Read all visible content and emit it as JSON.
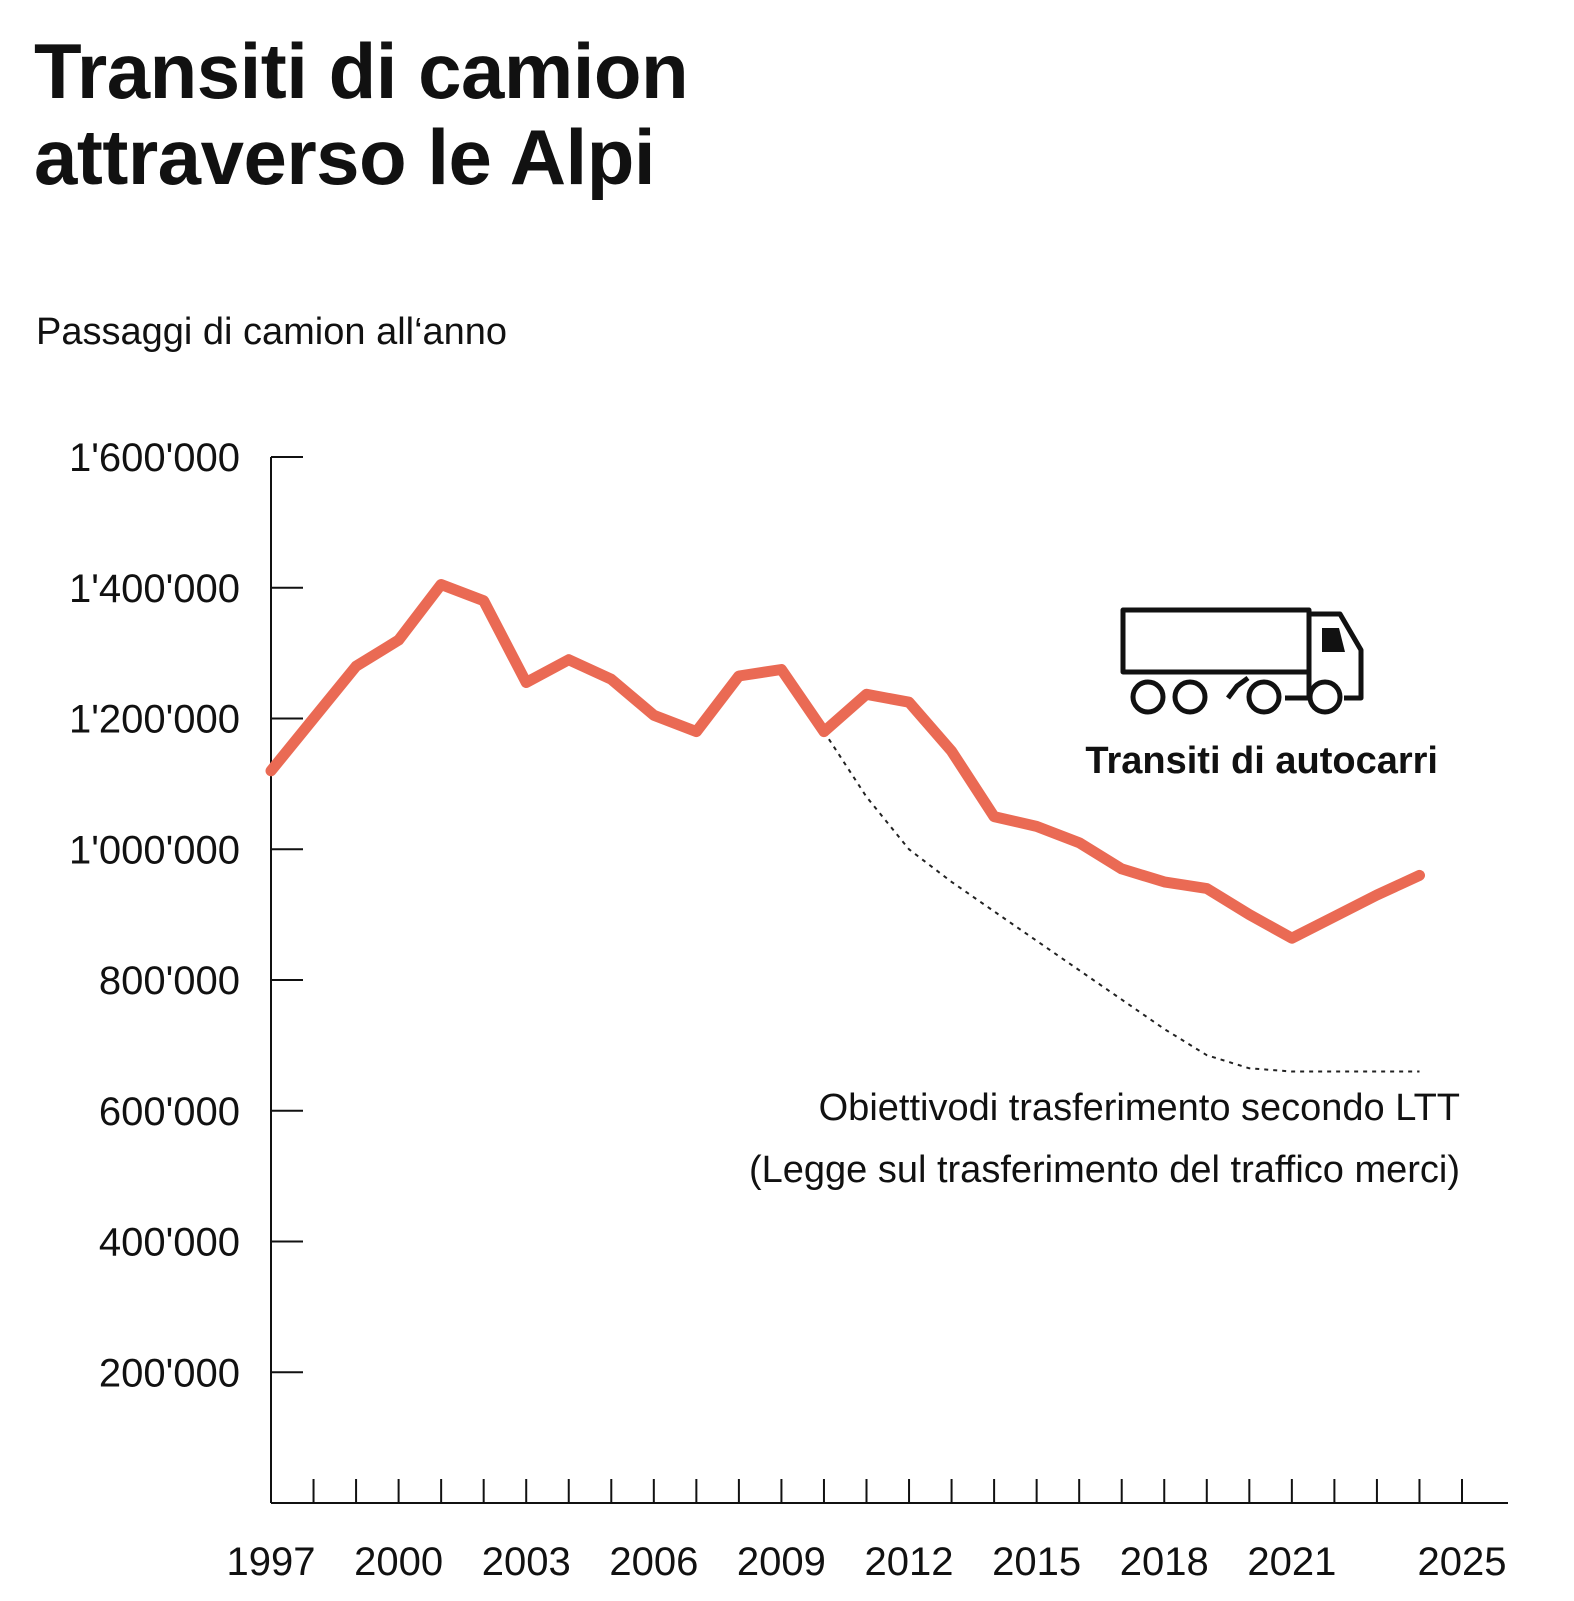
{
  "title_lines": [
    "Transiti di camion",
    "attraverso le Alpi"
  ],
  "y_axis_label": "Passaggi di camion all‘anno",
  "chart_data": {
    "type": "line",
    "title": "Transiti di camion attraverso le Alpi",
    "ylabel": "Passaggi di camion all‘anno",
    "xlim": [
      1997,
      2025
    ],
    "ylim": [
      0,
      1600000
    ],
    "y_ticks": [
      200000,
      400000,
      600000,
      800000,
      1000000,
      1200000,
      1400000,
      1600000
    ],
    "y_tick_labels": [
      "200'000",
      "400'000",
      "600'000",
      "800'000",
      "1'000'000",
      "1'200'000",
      "1'400'000",
      "1'600'000"
    ],
    "x_ticks": [
      1997,
      2000,
      2003,
      2006,
      2009,
      2012,
      2015,
      2018,
      2021,
      2025
    ],
    "x_tick_labels": [
      "1997",
      "2000",
      "2003",
      "2006",
      "2009",
      "2012",
      "2015",
      "2018",
      "2021",
      "2025"
    ],
    "x_minor_ticks": [
      1998,
      1999,
      2000,
      2001,
      2002,
      2003,
      2004,
      2005,
      2006,
      2007,
      2008,
      2009,
      2010,
      2011,
      2012,
      2013,
      2014,
      2015,
      2016,
      2017,
      2018,
      2019,
      2020,
      2021,
      2022,
      2023,
      2024,
      2025
    ],
    "grid": false,
    "series": [
      {
        "name": "Transiti di autocarri",
        "color": "#ea6a54",
        "style": "solid",
        "x": [
          1997,
          1998,
          1999,
          2000,
          2001,
          2002,
          2003,
          2004,
          2005,
          2006,
          2007,
          2008,
          2009,
          2010,
          2011,
          2012,
          2013,
          2014,
          2015,
          2016,
          2017,
          2018,
          2019,
          2020,
          2021,
          2022,
          2023,
          2024
        ],
        "y": [
          1120000,
          1200000,
          1280000,
          1320000,
          1405000,
          1380000,
          1255000,
          1290000,
          1260000,
          1205000,
          1180000,
          1265000,
          1275000,
          1180000,
          1237000,
          1225000,
          1150000,
          1050000,
          1035000,
          1010000,
          970000,
          950000,
          940000,
          900000,
          864000,
          897000,
          930000,
          960000
        ]
      },
      {
        "name": "Obiettivodi trasferimento secondo LTT",
        "color": "#222222",
        "style": "dotted",
        "x": [
          2010,
          2011,
          2012,
          2013,
          2014,
          2015,
          2016,
          2017,
          2018,
          2019,
          2020,
          2021,
          2022,
          2023,
          2024
        ],
        "y": [
          1180000,
          1080000,
          1000000,
          950000,
          905000,
          860000,
          815000,
          770000,
          725000,
          685000,
          665000,
          660000,
          660000,
          660000,
          660000
        ]
      }
    ],
    "annotations": [
      {
        "text": "Transiti di autocarri",
        "icon": "truck-icon"
      },
      {
        "text": "Obiettivodi trasferimento secondo LTT"
      },
      {
        "text": "(Legge sul trasferimento del traffico merci)"
      }
    ]
  }
}
